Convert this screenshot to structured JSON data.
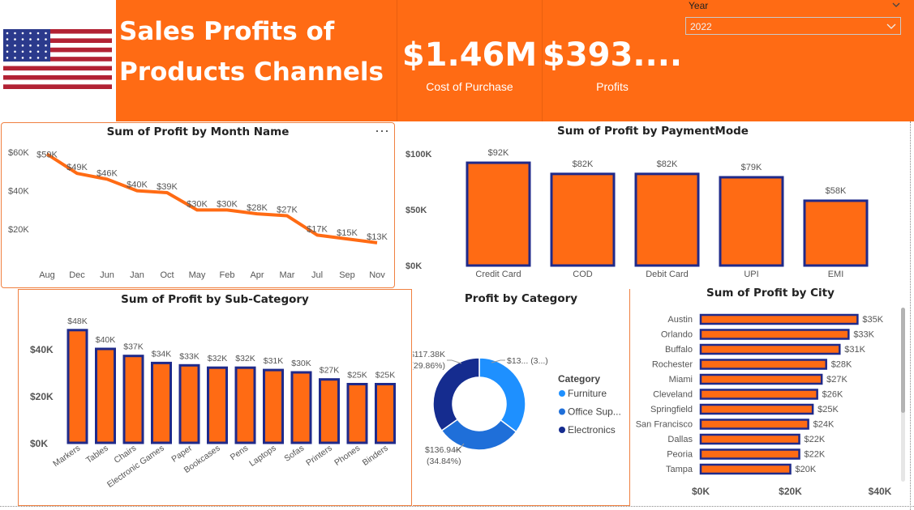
{
  "header": {
    "title_line1": "Sales Profits of",
    "title_line2": "Products Channels",
    "kpis": [
      {
        "value": "$1.46M",
        "label": "Cost of Purchase"
      },
      {
        "value": "$393....",
        "label": "Profits"
      }
    ],
    "slicer": {
      "label": "Year",
      "selected": "2022"
    },
    "colors": {
      "accent": "#FF6B14",
      "bar": "#FF6B14",
      "bar_border": "#1F2A8A"
    }
  },
  "panels": {
    "month": {
      "more_icon": "⋯"
    }
  },
  "chart_data": [
    {
      "id": "month",
      "type": "line",
      "title": "Sum of Profit by Month Name",
      "categories": [
        "Aug",
        "Dec",
        "Jun",
        "Jan",
        "Oct",
        "May",
        "Feb",
        "Apr",
        "Mar",
        "Jul",
        "Sep",
        "Nov"
      ],
      "values": [
        59,
        49,
        46,
        40,
        39,
        30,
        30,
        28,
        27,
        17,
        15,
        13
      ],
      "labels": [
        "$59K",
        "$49K",
        "$46K",
        "$40K",
        "$39K",
        "$30K",
        "$30K",
        "$28K",
        "$27K",
        "$17K",
        "$15K",
        "$13K"
      ],
      "yticks": [
        "$60K",
        "$40K",
        "$20K"
      ],
      "ytick_values": [
        60,
        40,
        20
      ]
    },
    {
      "id": "payment",
      "type": "bar",
      "title": "Sum of Profit by PaymentMode",
      "categories": [
        "Credit Card",
        "COD",
        "Debit Card",
        "UPI",
        "EMI"
      ],
      "values": [
        92,
        82,
        82,
        79,
        58
      ],
      "labels": [
        "$92K",
        "$82K",
        "$82K",
        "$79K",
        "$58K"
      ],
      "yticks": [
        "$100K",
        "$50K",
        "$0K"
      ],
      "ytick_values": [
        100,
        50,
        0
      ]
    },
    {
      "id": "subcat",
      "type": "bar",
      "title": "Sum of Profit by Sub-Category",
      "categories": [
        "Markers",
        "Tables",
        "Chairs",
        "Electronic Games",
        "Paper",
        "Bookcases",
        "Pens",
        "Laptops",
        "Sofas",
        "Printers",
        "Phones",
        "Binders"
      ],
      "values": [
        48,
        40,
        37,
        34,
        33,
        32,
        32,
        31,
        30,
        27,
        25,
        25
      ],
      "labels": [
        "$48K",
        "$40K",
        "$37K",
        "$34K",
        "$33K",
        "$32K",
        "$32K",
        "$31K",
        "$30K",
        "$27K",
        "$25K",
        "$25K"
      ],
      "yticks": [
        "$40K",
        "$20K",
        "$0K"
      ],
      "ytick_values": [
        40,
        20,
        0
      ]
    },
    {
      "id": "category",
      "type": "pie",
      "title": "Profit by Category",
      "legend_title": "Category",
      "categories": [
        "Furniture",
        "Office Sup...",
        "Electronics"
      ],
      "values": [
        138.9,
        117.38,
        136.94
      ],
      "percents": [
        35.3,
        29.86,
        34.84
      ],
      "colors": [
        "#1E90FF",
        "#1F6FD9",
        "#152C8F"
      ],
      "slice_labels": [
        {
          "value": "$13...",
          "pct": "(3...)"
        },
        {
          "value": "$117.38K",
          "pct": "(29.86%)"
        },
        {
          "value": "$136.94K",
          "pct": "(34.84%)"
        }
      ]
    },
    {
      "id": "city",
      "type": "bar",
      "title": "Sum of Profit by City",
      "categories": [
        "Austin",
        "Orlando",
        "Buffalo",
        "Rochester",
        "Miami",
        "Cleveland",
        "Springfield",
        "San Francisco",
        "Dallas",
        "Peoria",
        "Tampa"
      ],
      "values": [
        35,
        33,
        31,
        28,
        27,
        26,
        25,
        24,
        22,
        22,
        20
      ],
      "labels": [
        "$35K",
        "$33K",
        "$31K",
        "$28K",
        "$27K",
        "$26K",
        "$25K",
        "$24K",
        "$22K",
        "$22K",
        "$20K"
      ],
      "xticks": [
        "$0K",
        "$20K",
        "$40K"
      ],
      "xtick_values": [
        0,
        20,
        40
      ]
    }
  ]
}
